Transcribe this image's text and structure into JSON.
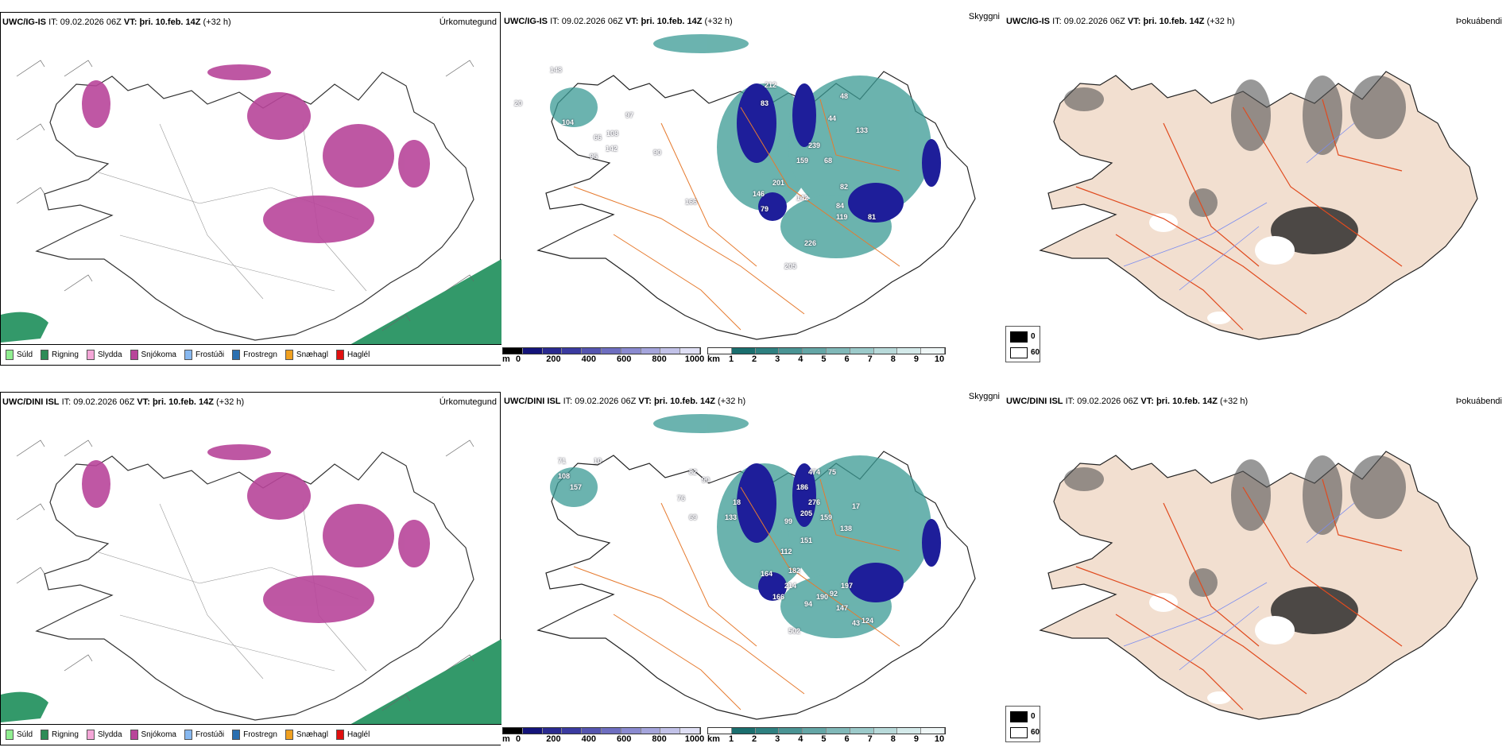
{
  "rows": [
    {
      "model": "UWC/IG-IS",
      "it_label": "IT:",
      "it": "09.02.2026 06Z",
      "vt_label": "VT:",
      "vt": "þri. 10.feb. 14Z",
      "lead": "(+32 h)"
    },
    {
      "model": "UWC/DINI ISL",
      "it_label": "IT:",
      "it": "09.02.2026 06Z",
      "vt_label": "VT:",
      "vt": "þri. 10.feb. 14Z",
      "lead": "(+32 h)"
    }
  ],
  "titles": {
    "precip": "Úrkomutegund",
    "cloud": "Skyggni",
    "dew": "Þokuábendi"
  },
  "precip_legend": [
    {
      "label": "Súld",
      "color": "#90ee90"
    },
    {
      "label": "Rigning",
      "color": "#2e8b57"
    },
    {
      "label": "Slydda",
      "color": "#f4a6d7"
    },
    {
      "label": "Snjókoma",
      "color": "#b8459a"
    },
    {
      "label": "Frostúði",
      "color": "#87b8f0"
    },
    {
      "label": "Frostregn",
      "color": "#2a6fb0"
    },
    {
      "label": "Snæhagl",
      "color": "#f0a020"
    },
    {
      "label": "Haglél",
      "color": "#e01010"
    }
  ],
  "cloudbase_bar": {
    "unit": "m",
    "ticks": [
      "0",
      "200",
      "400",
      "600",
      "800",
      "1000"
    ],
    "colors": [
      "#000",
      "#14147a",
      "#2a2a90",
      "#3b3ba0",
      "#5555b0",
      "#6e6ec0",
      "#8a8ad0",
      "#a5a5dc",
      "#c2c2e8",
      "#e0e0f5"
    ]
  },
  "visibility_bar": {
    "unit": "km",
    "ticks": [
      "1",
      "2",
      "3",
      "4",
      "5",
      "6",
      "7",
      "8",
      "9",
      "10"
    ],
    "colors": [
      "#fff",
      "#1a6e6e",
      "#2e8080",
      "#4a9494",
      "#64a6a6",
      "#80b8b8",
      "#9ccaca",
      "#b8dada",
      "#d4eaea",
      "#eef6f6"
    ]
  },
  "dew_legend": {
    "ticks": [
      "0",
      "60"
    ]
  },
  "cloud_labels": [
    [
      "20",
      "148",
      "104",
      "66",
      "95",
      "108",
      "97",
      "142",
      "90",
      "83",
      "212",
      "48",
      "44",
      "239",
      "68",
      "159",
      "133",
      "82",
      "84",
      "201",
      "146",
      "142",
      "79",
      "119",
      "81",
      "226",
      "205",
      "166"
    ],
    [
      "71",
      "10",
      "108",
      "157",
      "82",
      "76",
      "90",
      "69",
      "133",
      "18",
      "474",
      "186",
      "75",
      "276",
      "205",
      "159",
      "17",
      "138",
      "99",
      "151",
      "112",
      "182",
      "164",
      "214",
      "166",
      "190",
      "94",
      "92",
      "197",
      "502",
      "147",
      "43",
      "124"
    ]
  ]
}
